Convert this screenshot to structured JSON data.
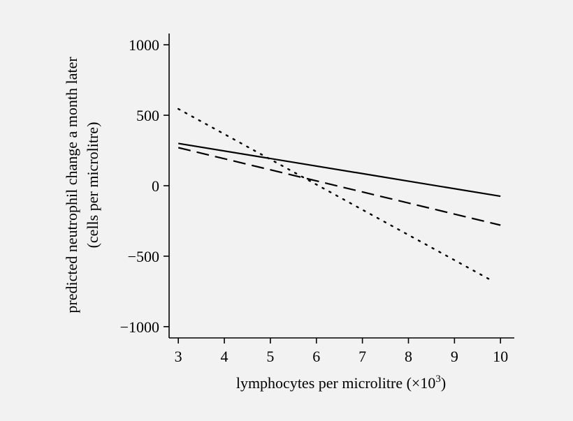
{
  "chart_data": {
    "type": "line",
    "title": "",
    "xlabel": "lymphocytes per microlitre (×10",
    "xlabel_sup": "3",
    "xlabel_close": ")",
    "ylabel_line1": "predicted neutrophil change a month later",
    "ylabel_line2": "(cells per microlitre)",
    "xlim": [
      2.8,
      10.3
    ],
    "ylim": [
      -1080,
      1080
    ],
    "x_ticks": [
      3,
      4,
      5,
      6,
      7,
      8,
      9,
      10
    ],
    "x_tick_labels": [
      "3",
      "4",
      "5",
      "6",
      "7",
      "8",
      "9",
      "10"
    ],
    "y_ticks": [
      1000,
      500,
      0,
      -500,
      -1000
    ],
    "y_tick_labels": [
      "1000",
      "500",
      "0",
      "−500",
      "−1000"
    ],
    "grid": false,
    "legend": "none",
    "series": [
      {
        "style": "solid",
        "color": "#000000",
        "x": [
          3,
          10
        ],
        "y": [
          300,
          -75
        ]
      },
      {
        "style": "dashed",
        "color": "#000000",
        "x": [
          3,
          10
        ],
        "y": [
          270,
          -280
        ]
      },
      {
        "style": "dotted",
        "color": "#000000",
        "x": [
          3,
          9.85
        ],
        "y": [
          545,
          -680
        ]
      }
    ]
  }
}
